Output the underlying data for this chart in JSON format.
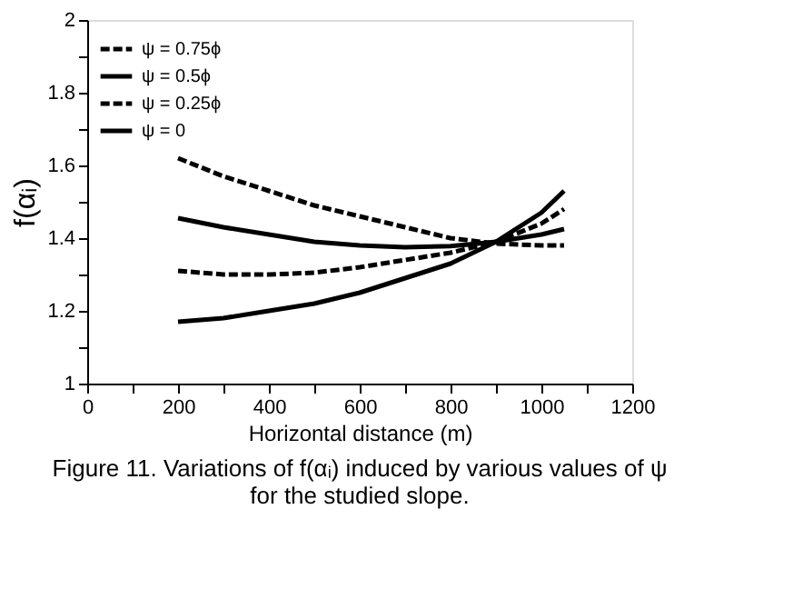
{
  "chart_data": {
    "type": "line",
    "xlabel": "Horizontal distance (m)",
    "ylabel": "f(αᵢ)",
    "annotations": [
      "Figure 11. Variations of f(αᵢ) induced by various values of ψ for the studied slope."
    ],
    "xlim": [
      0,
      1200
    ],
    "ylim": [
      1,
      2
    ],
    "xticks": [
      0,
      {
        "value": 100,
        "label": null
      },
      200,
      {
        "value": 300,
        "label": null
      },
      400,
      {
        "value": 500,
        "label": null
      },
      600,
      {
        "value": 700,
        "label": null
      },
      800,
      {
        "value": 900,
        "label": null
      },
      1000,
      {
        "value": 1100,
        "label": null
      },
      1200
    ],
    "yticks": [
      1,
      {
        "value": 1.1,
        "label": null
      },
      1.2,
      {
        "value": 1.3,
        "label": null
      },
      1.4,
      {
        "value": 1.5,
        "label": null
      },
      1.6,
      {
        "value": 1.7,
        "label": null
      },
      1.8,
      {
        "value": 1.9,
        "label": null
      },
      2
    ],
    "x": [
      200,
      300,
      400,
      500,
      600,
      700,
      800,
      900,
      1000,
      1050
    ],
    "series": [
      {
        "name": "ψ = 0.75ϕ",
        "color": "#000000",
        "line_style": "dashed",
        "values": [
          1.62,
          1.57,
          1.53,
          1.49,
          1.46,
          1.43,
          1.4,
          1.385,
          1.38,
          1.38
        ]
      },
      {
        "name": "ψ = 0.5ϕ",
        "color": "#000000",
        "line_style": "solid",
        "values": [
          1.455,
          1.43,
          1.41,
          1.39,
          1.38,
          1.375,
          1.378,
          1.39,
          1.41,
          1.425
        ]
      },
      {
        "name": "ψ = 0.25ϕ",
        "color": "#000000",
        "line_style": "dashed",
        "values": [
          1.31,
          1.3,
          1.3,
          1.305,
          1.32,
          1.34,
          1.36,
          1.39,
          1.44,
          1.48
        ]
      },
      {
        "name": "ψ = 0",
        "color": "#000000",
        "line_style": "solid",
        "values": [
          1.17,
          1.18,
          1.2,
          1.22,
          1.25,
          1.29,
          1.33,
          1.39,
          1.47,
          1.53
        ]
      }
    ],
    "grid": false,
    "legend": "top left",
    "marker": "none"
  }
}
